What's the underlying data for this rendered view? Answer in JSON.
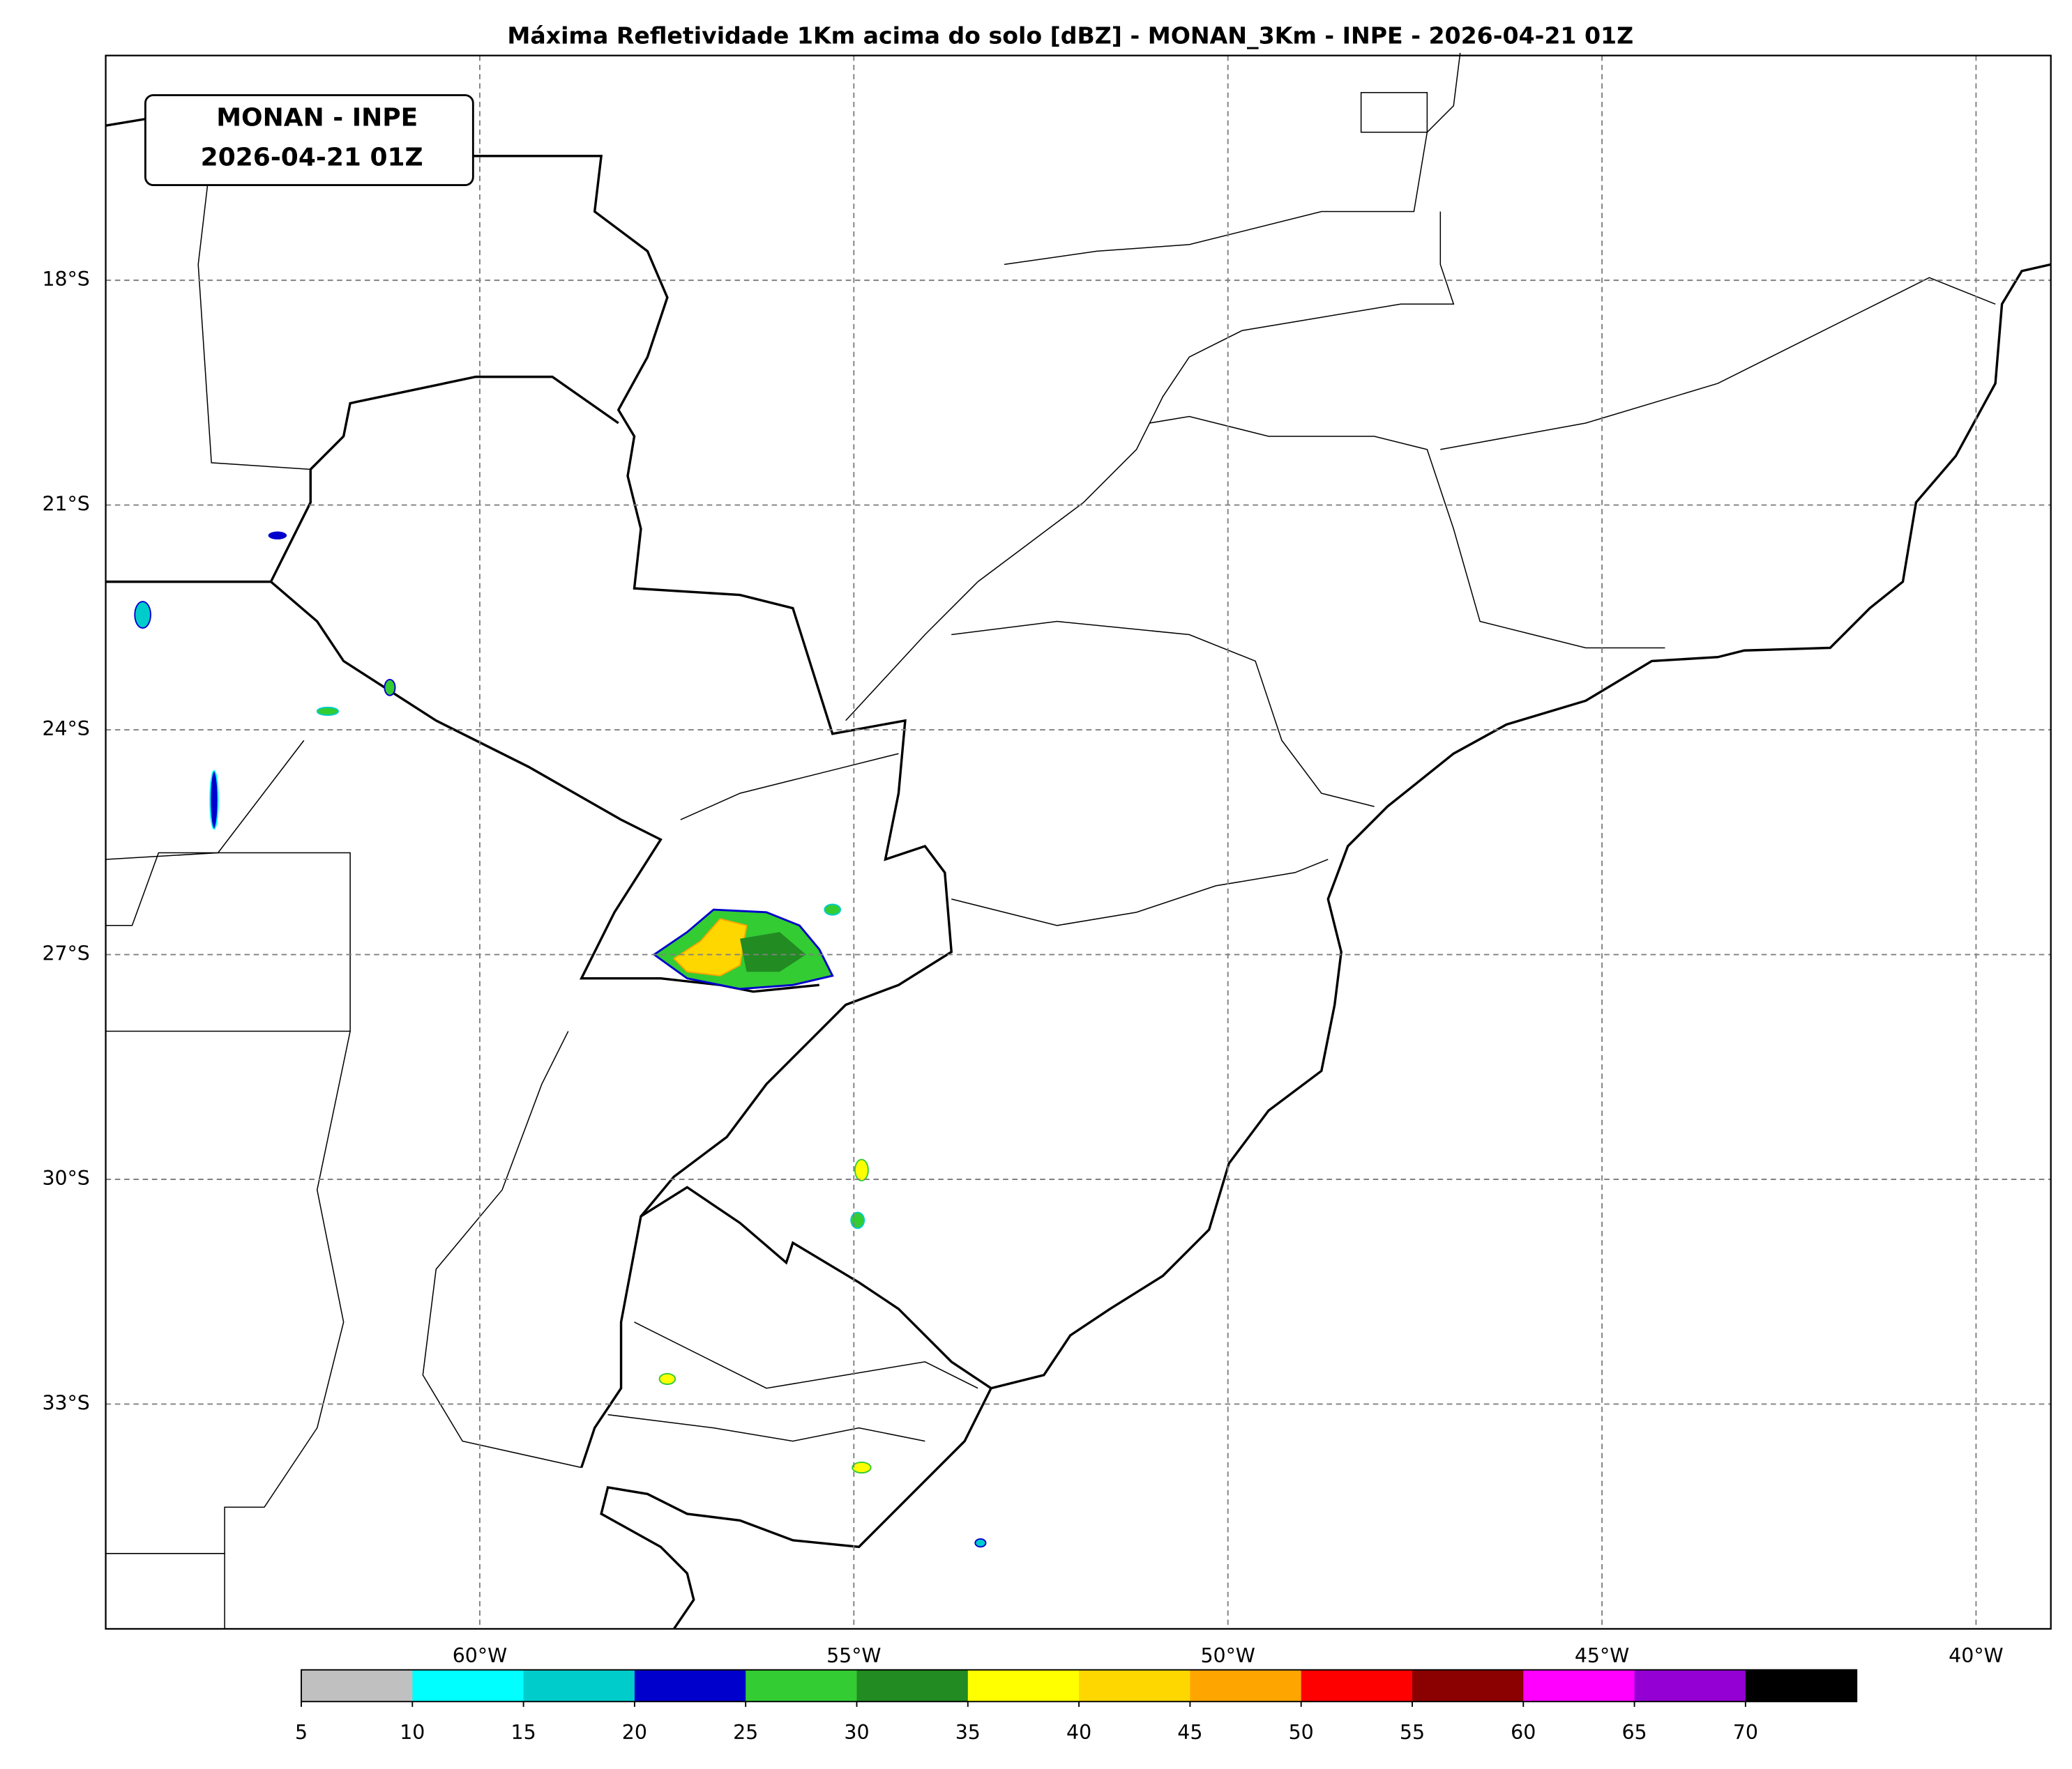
{
  "title": "Máxima Refletividade 1Km acima do solo [dBZ] - MONAN_3Km - INPE - 2026-04-21 01Z",
  "label_box": [
    "MONAN - INPE",
    "2026-04-21 01Z"
  ],
  "map": {
    "xlim": [
      -65,
      -39
    ],
    "ylim": [
      -36,
      -15
    ],
    "xticks": [
      {
        "value": -60,
        "label": "60°W"
      },
      {
        "value": -55,
        "label": "55°W"
      },
      {
        "value": -50,
        "label": "50°W"
      },
      {
        "value": -45,
        "label": "45°W"
      },
      {
        "value": -40,
        "label": "40°W"
      }
    ],
    "yticks": [
      {
        "value": -18,
        "label": "18°S"
      },
      {
        "value": -21,
        "label": "21°S"
      },
      {
        "value": -24,
        "label": "24°S"
      },
      {
        "value": -27,
        "label": "27°S"
      },
      {
        "value": -30,
        "label": "30°S"
      },
      {
        "value": -33,
        "label": "33°S"
      }
    ],
    "grid": true
  },
  "colorbar": {
    "lim": [
      5,
      75
    ],
    "ticks": [
      5,
      10,
      15,
      20,
      25,
      30,
      35,
      40,
      45,
      50,
      55,
      60,
      65,
      70
    ],
    "colors": [
      "#c0c0c0",
      "#00ffff",
      "#00cccc",
      "#0000cc",
      "#33cc33",
      "#228b22",
      "#ffff00",
      "#ffd700",
      "#ffa500",
      "#ff0000",
      "#8b0000",
      "#ff00ff",
      "#9400d3",
      "#000000"
    ]
  }
}
